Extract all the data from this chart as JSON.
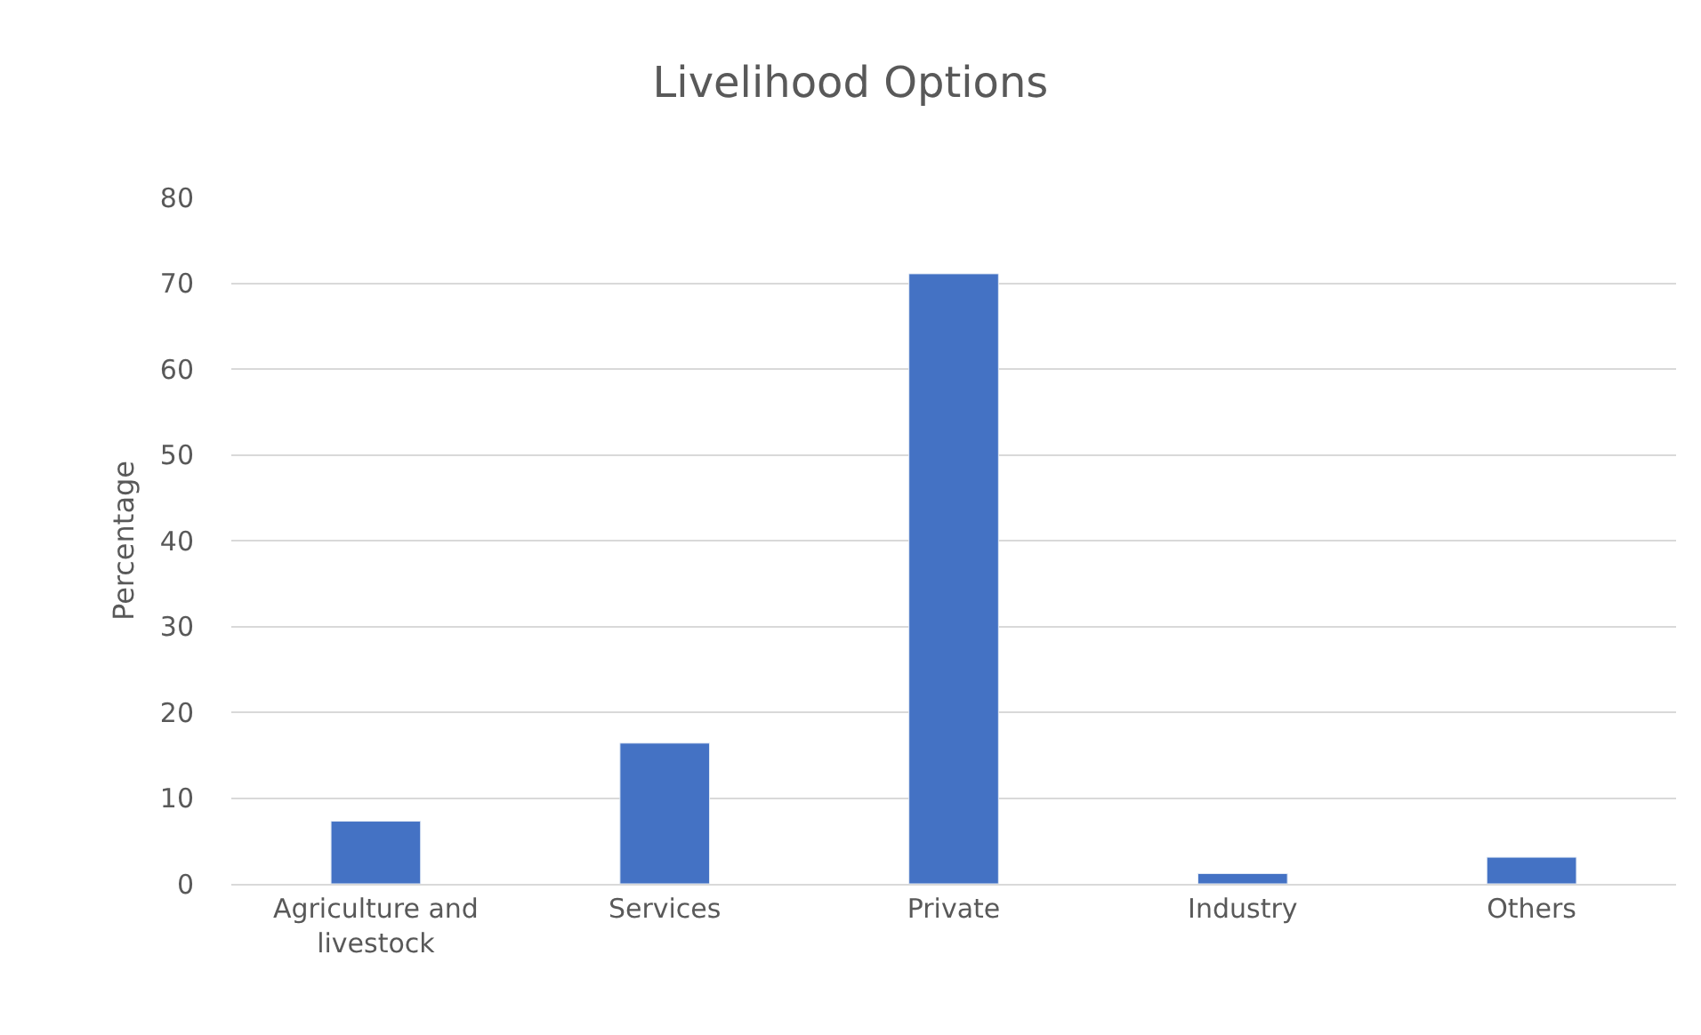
{
  "chart_data": {
    "type": "bar",
    "title": "Livelihood Options",
    "ylabel": "Percentage",
    "categories": [
      "Agriculture and livestock",
      "Services",
      "Private",
      "Industry",
      "Others"
    ],
    "values": [
      7.3,
      16.4,
      71.1,
      1.2,
      3.1
    ],
    "color": "#4472c4",
    "ylim": [
      0,
      80
    ],
    "yticks": [
      0,
      10,
      20,
      30,
      40,
      50,
      60,
      70,
      80
    ],
    "grid": "y"
  }
}
